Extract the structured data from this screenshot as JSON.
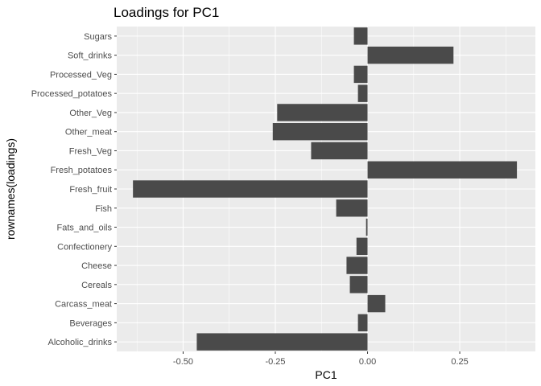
{
  "chart_data": {
    "type": "bar",
    "orientation": "horizontal",
    "title": "Loadings for PC1",
    "xlabel": "PC1",
    "ylabel": "rownames(loadings)",
    "xlim": [
      -0.68,
      0.455
    ],
    "x_ticks": [
      -0.5,
      -0.25,
      0.0,
      0.25
    ],
    "x_tick_labels": [
      "-0.50",
      "-0.25",
      "0.00",
      "0.25"
    ],
    "grid": true,
    "bar_color": "#4a4a4a",
    "panel_color": "#ebebeb",
    "categories": [
      "Alcoholic_drinks",
      "Beverages",
      "Carcass_meat",
      "Cereals",
      "Cheese",
      "Confectionery",
      "Fats_and_oils",
      "Fish",
      "Fresh_fruit",
      "Fresh_potatoes",
      "Fresh_Veg",
      "Other_meat",
      "Other_Veg",
      "Processed_potatoes",
      "Processed_Veg",
      "Soft_drinks",
      "Sugars"
    ],
    "values": [
      -0.463,
      -0.026,
      0.048,
      -0.048,
      -0.057,
      -0.03,
      -0.004,
      -0.085,
      -0.636,
      0.405,
      -0.153,
      -0.257,
      -0.245,
      -0.026,
      -0.037,
      0.233,
      -0.037
    ]
  }
}
